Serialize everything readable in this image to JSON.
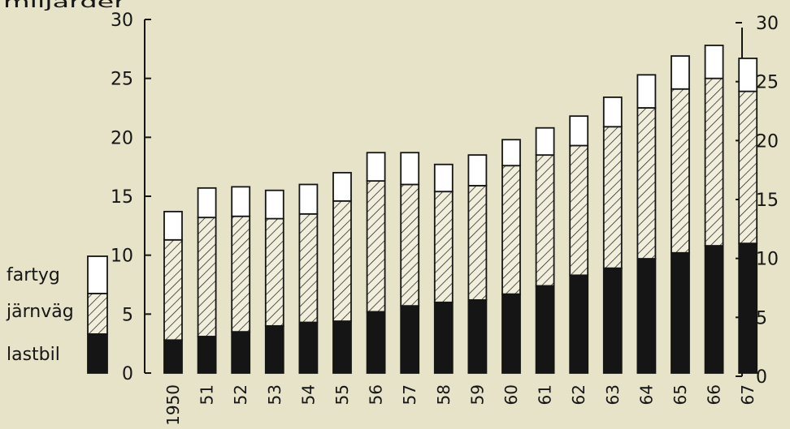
{
  "chart_data": {
    "type": "bar",
    "stacked": true,
    "title": "",
    "unit_label_fragment": "miljarder",
    "xlabel": "",
    "ylabel": "",
    "categories": [
      "1950",
      "51",
      "52",
      "53",
      "54",
      "55",
      "56",
      "57",
      "58",
      "59",
      "60",
      "61",
      "62",
      "63",
      "64",
      "65",
      "66",
      "67"
    ],
    "series": [
      {
        "name": "lastbil",
        "pattern": "solid-dark",
        "values": [
          2.8,
          3.1,
          3.5,
          4.0,
          4.3,
          4.4,
          5.2,
          5.7,
          6.0,
          6.2,
          6.7,
          7.4,
          8.3,
          8.9,
          9.7,
          10.2,
          10.8,
          11.0
        ]
      },
      {
        "name": "järnväg",
        "pattern": "hatched",
        "values": [
          8.5,
          10.1,
          9.8,
          9.1,
          9.2,
          10.2,
          11.1,
          10.3,
          9.4,
          9.7,
          10.9,
          11.1,
          11.0,
          12.0,
          12.8,
          13.9,
          14.2,
          12.9
        ]
      },
      {
        "name": "fartyg",
        "pattern": "white",
        "values": [
          2.4,
          2.5,
          2.5,
          2.4,
          2.5,
          2.4,
          2.4,
          2.7,
          2.3,
          2.6,
          2.2,
          2.3,
          2.5,
          2.5,
          2.8,
          2.8,
          2.8,
          2.8
        ]
      }
    ],
    "y_ticks": [
      "0",
      "5",
      "10",
      "15",
      "20",
      "25",
      "30"
    ],
    "ylim": [
      0,
      30
    ],
    "legend_position": "left",
    "grid": false,
    "colors": {
      "background": "#e6e3c9",
      "ink": "#151515",
      "bar_fill": "#ffffff"
    }
  }
}
